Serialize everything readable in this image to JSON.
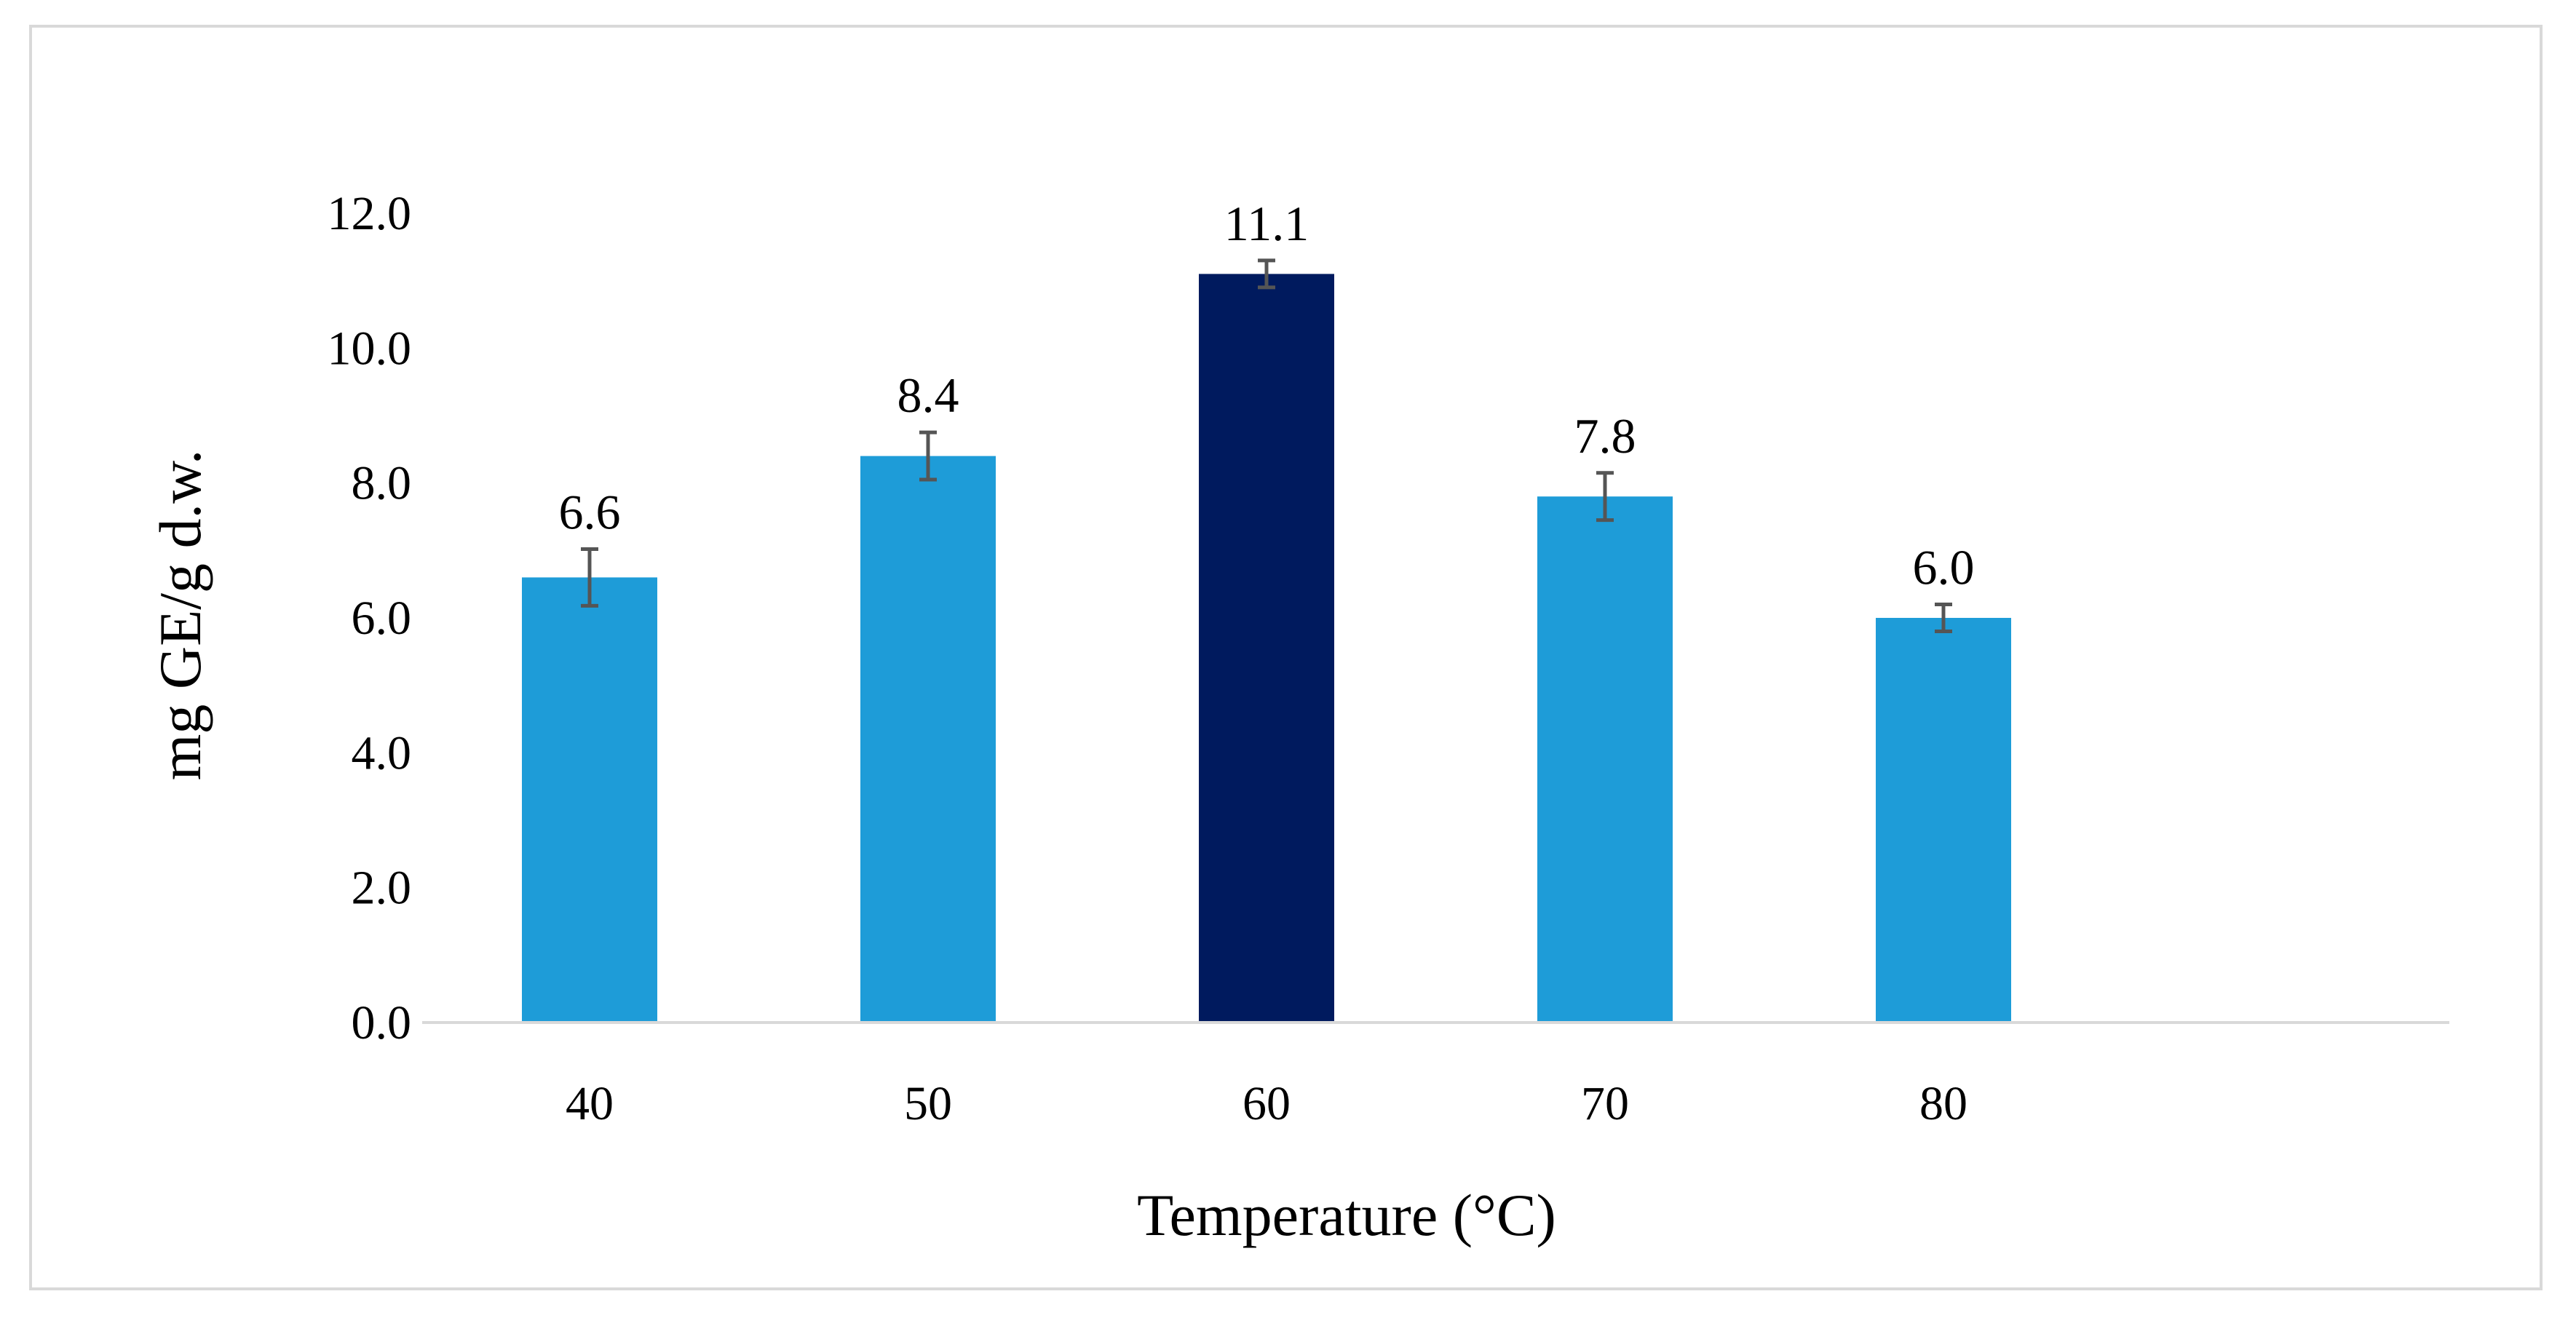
{
  "chart_data": {
    "type": "bar",
    "title": "",
    "xlabel": "Temperature (°C)",
    "ylabel": "mg GE/g d.w.",
    "categories": [
      "40",
      "50",
      "60",
      "70",
      "80"
    ],
    "values": [
      6.6,
      8.4,
      11.1,
      7.8,
      6.0
    ],
    "value_labels": [
      "6.6",
      "8.4",
      "11.1",
      "7.8",
      "6.0"
    ],
    "errors": [
      0.42,
      0.35,
      0.2,
      0.35,
      0.2
    ],
    "highlight_index": 2,
    "ylim": [
      0,
      12
    ],
    "yticks": [
      "0.0",
      "2.0",
      "4.0",
      "6.0",
      "8.0",
      "10.0",
      "12.0"
    ],
    "grid": false,
    "colors": {
      "bar": "#1e9cd8",
      "highlight": "#001a5e",
      "error_bar": "#555555",
      "axis": "#d9d9d9"
    }
  }
}
